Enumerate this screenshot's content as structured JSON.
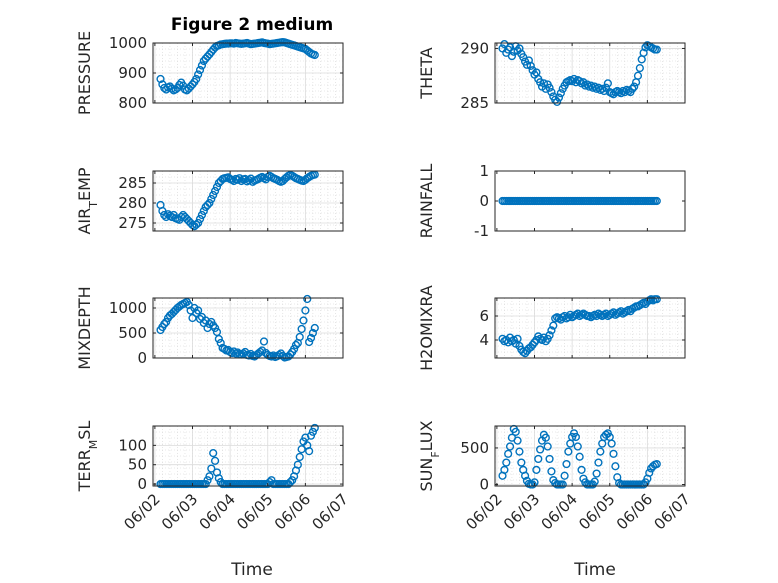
{
  "figure_title": "Figure 2 medium",
  "x_axis_label": "Time",
  "x_tick_labels": [
    "06/02",
    "06/03",
    "06/04",
    "06/05",
    "06/06",
    "06/07"
  ],
  "marker_color": "#0072bd",
  "chart_data": [
    {
      "type": "scatter",
      "ylabel": "PRESSURE",
      "ylim": [
        800,
        1000
      ],
      "yticks": [
        "800",
        "900",
        "1000"
      ],
      "grid": "on",
      "x": [
        0.15,
        0.2,
        0.25,
        0.3,
        0.35,
        0.4,
        0.45,
        0.5,
        0.55,
        0.6,
        0.65,
        0.7,
        0.75,
        0.8,
        0.85,
        0.9,
        0.95,
        1.0,
        1.05,
        1.1,
        1.15,
        1.2,
        1.25,
        1.3,
        1.35,
        1.4,
        1.45,
        1.5,
        1.55,
        1.6,
        1.65,
        1.7,
        1.75,
        1.8,
        1.85,
        1.9,
        1.95,
        2.0,
        2.05,
        2.1,
        2.15,
        2.2,
        2.25,
        2.3,
        2.35,
        2.4,
        2.45,
        2.5,
        2.55,
        2.6,
        2.65,
        2.7,
        2.75,
        2.8,
        2.85,
        2.9,
        2.95,
        3.0,
        3.05,
        3.1,
        3.15,
        3.2,
        3.25,
        3.3,
        3.35,
        3.4,
        3.45,
        3.5,
        3.55,
        3.6,
        3.65,
        3.7,
        3.75,
        3.8,
        3.85,
        3.9,
        3.95,
        4.0,
        4.05,
        4.1,
        4.15,
        4.2,
        4.25
      ],
      "y": [
        880,
        862,
        850,
        845,
        852,
        855,
        848,
        842,
        845,
        850,
        860,
        868,
        858,
        845,
        842,
        848,
        855,
        862,
        870,
        880,
        895,
        910,
        925,
        940,
        948,
        955,
        962,
        970,
        978,
        985,
        990,
        992,
        995,
        996,
        997,
        998,
        998,
        999,
        999,
        998,
        1000,
        999,
        998,
        997,
        998,
        999,
        1000,
        998,
        996,
        997,
        998,
        999,
        1000,
        1001,
        1002,
        1000,
        999,
        998,
        996,
        997,
        998,
        999,
        1000,
        1001,
        1002,
        1003,
        1002,
        1000,
        998,
        996,
        994,
        992,
        990,
        988,
        986,
        984,
        982,
        980,
        975,
        970,
        965,
        962,
        960
      ]
    },
    {
      "type": "scatter",
      "ylabel": "THETA",
      "ylim": [
        285,
        290.5
      ],
      "yticks": [
        "285",
        "290"
      ],
      "grid": "on",
      "x": [
        0.15,
        0.2,
        0.25,
        0.3,
        0.35,
        0.4,
        0.45,
        0.5,
        0.55,
        0.6,
        0.65,
        0.7,
        0.75,
        0.8,
        0.85,
        0.9,
        0.95,
        1.0,
        1.05,
        1.1,
        1.15,
        1.2,
        1.25,
        1.3,
        1.35,
        1.4,
        1.45,
        1.5,
        1.55,
        1.6,
        1.65,
        1.7,
        1.75,
        1.8,
        1.85,
        1.9,
        1.95,
        2.0,
        2.05,
        2.1,
        2.15,
        2.2,
        2.25,
        2.3,
        2.35,
        2.4,
        2.45,
        2.5,
        2.55,
        2.6,
        2.65,
        2.7,
        2.75,
        2.8,
        2.85,
        2.9,
        2.95,
        3.0,
        3.05,
        3.1,
        3.15,
        3.2,
        3.25,
        3.3,
        3.35,
        3.4,
        3.45,
        3.5,
        3.55,
        3.6,
        3.65,
        3.7,
        3.75,
        3.8,
        3.85,
        3.9,
        3.95,
        4.0,
        4.05,
        4.1,
        4.15,
        4.2,
        4.25
      ],
      "y": [
        290.0,
        290.4,
        289.6,
        289.9,
        290.1,
        289.3,
        289.7,
        290.2,
        289.8,
        290.0,
        289.5,
        289.2,
        288.8,
        288.5,
        288.9,
        288.4,
        288.0,
        287.6,
        287.8,
        287.2,
        286.9,
        286.5,
        286.8,
        286.3,
        286.7,
        286.4,
        286.0,
        285.6,
        285.3,
        285.1,
        285.5,
        285.9,
        286.3,
        286.6,
        286.9,
        287.0,
        287.1,
        287.0,
        287.2,
        286.9,
        287.1,
        287.0,
        286.8,
        286.9,
        286.6,
        286.7,
        286.5,
        286.6,
        286.4,
        286.5,
        286.3,
        286.4,
        286.2,
        286.3,
        286.1,
        286.4,
        286.8,
        286.0,
        285.9,
        285.8,
        286.0,
        286.1,
        286.0,
        285.9,
        286.1,
        286.0,
        286.2,
        286.1,
        286.0,
        286.3,
        286.5,
        286.9,
        287.5,
        288.2,
        289.0,
        289.6,
        290.1,
        290.3,
        290.2,
        290.1,
        290.0,
        289.9,
        289.9
      ]
    },
    {
      "type": "scatter",
      "ylabel": "AIR_TEMP",
      "ylim": [
        273,
        288
      ],
      "yticks": [
        "275",
        "280",
        "285"
      ],
      "grid": "on",
      "x": [
        0.15,
        0.2,
        0.25,
        0.3,
        0.35,
        0.4,
        0.45,
        0.5,
        0.55,
        0.6,
        0.65,
        0.7,
        0.75,
        0.8,
        0.85,
        0.9,
        0.95,
        1.0,
        1.05,
        1.1,
        1.15,
        1.2,
        1.25,
        1.3,
        1.35,
        1.4,
        1.45,
        1.5,
        1.55,
        1.6,
        1.65,
        1.7,
        1.75,
        1.8,
        1.85,
        1.9,
        1.95,
        2.0,
        2.05,
        2.1,
        2.15,
        2.2,
        2.25,
        2.3,
        2.35,
        2.4,
        2.45,
        2.5,
        2.55,
        2.6,
        2.65,
        2.7,
        2.75,
        2.8,
        2.85,
        2.9,
        2.95,
        3.0,
        3.05,
        3.1,
        3.15,
        3.2,
        3.25,
        3.3,
        3.35,
        3.4,
        3.45,
        3.5,
        3.55,
        3.6,
        3.65,
        3.7,
        3.75,
        3.8,
        3.85,
        3.9,
        3.95,
        4.0,
        4.05,
        4.1,
        4.15,
        4.2,
        4.25
      ],
      "y": [
        279.5,
        278.0,
        277.0,
        276.5,
        277.2,
        276.8,
        276.5,
        277.0,
        276.2,
        276.0,
        275.8,
        276.5,
        277.0,
        276.5,
        276.0,
        275.5,
        275.0,
        274.5,
        274.2,
        274.6,
        275.0,
        276.0,
        277.0,
        278.0,
        279.0,
        279.5,
        280.0,
        281.0,
        282.0,
        283.0,
        284.0,
        285.0,
        285.5,
        286.0,
        286.2,
        286.3,
        286.4,
        286.0,
        285.8,
        285.5,
        286.0,
        285.8,
        286.2,
        285.5,
        285.9,
        286.0,
        285.4,
        285.7,
        286.1,
        285.3,
        285.6,
        285.8,
        286.0,
        286.3,
        286.5,
        286.2,
        285.9,
        286.5,
        286.8,
        286.5,
        286.2,
        286.0,
        285.8,
        285.5,
        285.3,
        285.5,
        286.0,
        286.4,
        286.8,
        287.0,
        286.8,
        286.5,
        286.2,
        286.0,
        285.8,
        285.6,
        285.5,
        285.8,
        286.2,
        286.5,
        286.8,
        287.0,
        287.1
      ]
    },
    {
      "type": "scatter",
      "ylabel": "RAINFALL",
      "ylim": [
        -1,
        1
      ],
      "yticks": [
        "-1",
        "0",
        "1"
      ],
      "grid": "off",
      "x": [
        0.15,
        0.2,
        0.25,
        0.3,
        0.35,
        0.4,
        0.45,
        0.5,
        0.55,
        0.6,
        0.65,
        0.7,
        0.75,
        0.8,
        0.85,
        0.9,
        0.95,
        1.0,
        1.05,
        1.1,
        1.15,
        1.2,
        1.25,
        1.3,
        1.35,
        1.4,
        1.45,
        1.5,
        1.55,
        1.6,
        1.65,
        1.7,
        1.75,
        1.8,
        1.85,
        1.9,
        1.95,
        2.0,
        2.05,
        2.1,
        2.15,
        2.2,
        2.25,
        2.3,
        2.35,
        2.4,
        2.45,
        2.5,
        2.55,
        2.6,
        2.65,
        2.7,
        2.75,
        2.8,
        2.85,
        2.9,
        2.95,
        3.0,
        3.05,
        3.1,
        3.15,
        3.2,
        3.25,
        3.3,
        3.35,
        3.4,
        3.45,
        3.5,
        3.55,
        3.6,
        3.65,
        3.7,
        3.75,
        3.8,
        3.85,
        3.9,
        3.95,
        4.0,
        4.05,
        4.1,
        4.15,
        4.2,
        4.25
      ],
      "y": [
        0,
        0,
        0,
        0,
        0,
        0,
        0,
        0,
        0,
        0,
        0,
        0,
        0,
        0,
        0,
        0,
        0,
        0,
        0,
        0,
        0,
        0,
        0,
        0,
        0,
        0,
        0,
        0,
        0,
        0,
        0,
        0,
        0,
        0,
        0,
        0,
        0,
        0,
        0,
        0,
        0,
        0,
        0,
        0,
        0,
        0,
        0,
        0,
        0,
        0,
        0,
        0,
        0,
        0,
        0,
        0,
        0,
        0,
        0,
        0,
        0,
        0,
        0,
        0,
        0,
        0,
        0,
        0,
        0,
        0,
        0,
        0,
        0,
        0,
        0,
        0,
        0,
        0,
        0,
        0,
        0,
        0,
        0
      ]
    },
    {
      "type": "scatter",
      "ylabel": "MIXDEPTH",
      "ylim": [
        0,
        1200
      ],
      "yticks": [
        "0",
        "500",
        "1000"
      ],
      "grid": "on",
      "x": [
        0.15,
        0.2,
        0.25,
        0.3,
        0.35,
        0.4,
        0.45,
        0.5,
        0.55,
        0.6,
        0.65,
        0.7,
        0.75,
        0.8,
        0.85,
        0.9,
        0.95,
        1.0,
        1.05,
        1.1,
        1.15,
        1.2,
        1.25,
        1.3,
        1.35,
        1.4,
        1.45,
        1.5,
        1.55,
        1.6,
        1.65,
        1.7,
        1.75,
        1.8,
        1.85,
        1.9,
        1.95,
        2.0,
        2.05,
        2.1,
        2.15,
        2.2,
        2.25,
        2.3,
        2.35,
        2.4,
        2.45,
        2.5,
        2.55,
        2.6,
        2.65,
        2.7,
        2.75,
        2.8,
        2.85,
        2.9,
        2.95,
        3.0,
        3.05,
        3.1,
        3.15,
        3.2,
        3.25,
        3.3,
        3.35,
        3.4,
        3.45,
        3.5,
        3.55,
        3.6,
        3.65,
        3.7,
        3.75,
        3.8,
        3.85,
        3.9,
        3.95,
        4.0,
        4.05,
        4.1,
        4.15,
        4.2,
        4.25
      ],
      "y": [
        560,
        620,
        680,
        720,
        800,
        850,
        880,
        920,
        960,
        1000,
        1030,
        1060,
        1080,
        1100,
        1120,
        1060,
        950,
        800,
        1000,
        900,
        950,
        780,
        820,
        700,
        750,
        600,
        680,
        720,
        650,
        600,
        520,
        380,
        300,
        200,
        180,
        150,
        160,
        120,
        100,
        130,
        90,
        110,
        80,
        70,
        90,
        120,
        60,
        50,
        80,
        40,
        30,
        60,
        90,
        120,
        150,
        330,
        100,
        60,
        40,
        30,
        50,
        20,
        35,
        60,
        90,
        40,
        10,
        20,
        30,
        70,
        120,
        180,
        260,
        300,
        420,
        580,
        750,
        950,
        1180,
        320,
        400,
        500,
        600
      ]
    },
    {
      "type": "scatter",
      "ylabel": "H2OMIXRA",
      "ylim": [
        2.5,
        7.5
      ],
      "yticks": [
        "4",
        "6"
      ],
      "grid": "on",
      "x": [
        0.15,
        0.2,
        0.25,
        0.3,
        0.35,
        0.4,
        0.45,
        0.5,
        0.55,
        0.6,
        0.65,
        0.7,
        0.75,
        0.8,
        0.85,
        0.9,
        0.95,
        1.0,
        1.05,
        1.1,
        1.15,
        1.2,
        1.25,
        1.3,
        1.35,
        1.4,
        1.45,
        1.5,
        1.55,
        1.6,
        1.65,
        1.7,
        1.75,
        1.8,
        1.85,
        1.9,
        1.95,
        2.0,
        2.05,
        2.1,
        2.15,
        2.2,
        2.25,
        2.3,
        2.35,
        2.4,
        2.45,
        2.5,
        2.55,
        2.6,
        2.65,
        2.7,
        2.75,
        2.8,
        2.85,
        2.9,
        2.95,
        3.0,
        3.05,
        3.1,
        3.15,
        3.2,
        3.25,
        3.3,
        3.35,
        3.4,
        3.45,
        3.5,
        3.55,
        3.6,
        3.65,
        3.7,
        3.75,
        3.8,
        3.85,
        3.9,
        3.95,
        4.0,
        4.05,
        4.1,
        4.15,
        4.2,
        4.25
      ],
      "y": [
        4.1,
        3.9,
        4.0,
        3.8,
        4.2,
        3.9,
        4.0,
        3.7,
        4.1,
        3.5,
        3.2,
        3.0,
        2.9,
        3.1,
        3.3,
        3.4,
        3.6,
        3.8,
        4.0,
        4.3,
        4.1,
        4.0,
        4.2,
        3.9,
        4.1,
        4.4,
        4.8,
        5.2,
        5.8,
        5.9,
        5.8,
        5.7,
        5.9,
        6.0,
        5.8,
        5.9,
        6.1,
        5.9,
        6.0,
        6.1,
        6.2,
        6.0,
        6.1,
        6.2,
        6.1,
        6.0,
        6.0,
        5.9,
        6.0,
        6.1,
        6.0,
        6.2,
        6.1,
        6.0,
        6.1,
        6.2,
        6.0,
        6.1,
        6.2,
        6.3,
        6.1,
        6.2,
        6.3,
        6.4,
        6.2,
        6.3,
        6.4,
        6.5,
        6.4,
        6.6,
        6.7,
        6.8,
        6.8,
        6.9,
        7.0,
        7.1,
        7.0,
        7.2,
        7.3,
        7.4,
        7.3,
        7.4,
        7.4
      ]
    },
    {
      "type": "scatter",
      "ylabel": "TERR_MSL",
      "ylim": [
        -5,
        150
      ],
      "yticks": [
        "0",
        "50",
        "100"
      ],
      "grid": "on",
      "x": [
        0.15,
        0.2,
        0.25,
        0.3,
        0.35,
        0.4,
        0.45,
        0.5,
        0.55,
        0.6,
        0.65,
        0.7,
        0.75,
        0.8,
        0.85,
        0.9,
        0.95,
        1.0,
        1.05,
        1.1,
        1.15,
        1.2,
        1.25,
        1.3,
        1.35,
        1.4,
        1.45,
        1.5,
        1.55,
        1.6,
        1.65,
        1.7,
        1.75,
        1.8,
        1.85,
        1.9,
        1.95,
        2.0,
        2.05,
        2.1,
        2.15,
        2.2,
        2.25,
        2.3,
        2.35,
        2.4,
        2.45,
        2.5,
        2.55,
        2.6,
        2.65,
        2.7,
        2.75,
        2.8,
        2.85,
        2.9,
        2.95,
        3.0,
        3.05,
        3.1,
        3.15,
        3.2,
        3.25,
        3.3,
        3.35,
        3.4,
        3.45,
        3.5,
        3.55,
        3.6,
        3.65,
        3.7,
        3.75,
        3.8,
        3.85,
        3.9,
        3.95,
        4.0,
        4.05,
        4.1,
        4.15,
        4.2,
        4.25
      ],
      "y": [
        0,
        0,
        0,
        0,
        0,
        0,
        0,
        0,
        0,
        0,
        0,
        0,
        0,
        0,
        0,
        0,
        0,
        0,
        0,
        0,
        0,
        0,
        0,
        0,
        0,
        10,
        20,
        40,
        80,
        60,
        30,
        15,
        5,
        0,
        0,
        0,
        0,
        0,
        0,
        0,
        0,
        0,
        0,
        0,
        0,
        0,
        0,
        0,
        0,
        0,
        0,
        0,
        0,
        0,
        0,
        0,
        0,
        0,
        5,
        10,
        0,
        0,
        0,
        0,
        0,
        0,
        0,
        0,
        0,
        5,
        10,
        20,
        35,
        50,
        70,
        90,
        110,
        120,
        100,
        85,
        125,
        135,
        145
      ]
    },
    {
      "type": "scatter",
      "ylabel": "SUN_FLUX",
      "ylim": [
        -20,
        800
      ],
      "yticks": [
        "0",
        "500"
      ],
      "grid": "on",
      "x": [
        0.15,
        0.2,
        0.25,
        0.3,
        0.35,
        0.4,
        0.45,
        0.5,
        0.55,
        0.6,
        0.65,
        0.7,
        0.75,
        0.8,
        0.85,
        0.9,
        0.95,
        1.0,
        1.05,
        1.1,
        1.15,
        1.2,
        1.25,
        1.3,
        1.35,
        1.4,
        1.45,
        1.5,
        1.55,
        1.6,
        1.65,
        1.7,
        1.75,
        1.8,
        1.85,
        1.9,
        1.95,
        2.0,
        2.05,
        2.1,
        2.15,
        2.2,
        2.25,
        2.3,
        2.35,
        2.4,
        2.45,
        2.5,
        2.55,
        2.6,
        2.65,
        2.7,
        2.75,
        2.8,
        2.85,
        2.9,
        2.95,
        3.0,
        3.05,
        3.1,
        3.15,
        3.2,
        3.25,
        3.3,
        3.35,
        3.4,
        3.45,
        3.5,
        3.55,
        3.6,
        3.65,
        3.7,
        3.75,
        3.8,
        3.85,
        3.9,
        3.95,
        4.0,
        4.05,
        4.1,
        4.15,
        4.2,
        4.25
      ],
      "y": [
        120,
        200,
        300,
        420,
        520,
        640,
        760,
        720,
        600,
        450,
        300,
        200,
        120,
        50,
        10,
        0,
        0,
        30,
        200,
        350,
        480,
        600,
        680,
        640,
        520,
        350,
        180,
        60,
        20,
        0,
        0,
        0,
        0,
        120,
        280,
        450,
        560,
        650,
        700,
        650,
        520,
        380,
        200,
        80,
        30,
        0,
        0,
        0,
        0,
        40,
        150,
        300,
        450,
        560,
        650,
        680,
        700,
        650,
        560,
        420,
        250,
        100,
        20,
        0,
        0,
        0,
        0,
        0,
        0,
        0,
        0,
        0,
        0,
        0,
        0,
        0,
        30,
        80,
        160,
        220,
        250,
        270,
        280
      ]
    }
  ]
}
